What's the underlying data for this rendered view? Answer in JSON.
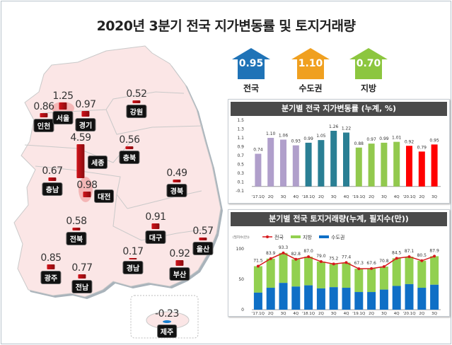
{
  "title": "2020년 3분기 전국 지가변동률 및 토지거래량",
  "summary": [
    {
      "label": "전국",
      "value": "0.95",
      "color": "#1f73b7"
    },
    {
      "label": "수도권",
      "value": "1.10",
      "color": "#f0a020"
    },
    {
      "label": "지방",
      "value": "0.70",
      "color": "#8cc63f"
    }
  ],
  "regions": [
    {
      "name": "인천",
      "value": "0.86"
    },
    {
      "name": "서울",
      "value": "1.25"
    },
    {
      "name": "경기",
      "value": "0.97"
    },
    {
      "name": "강원",
      "value": "0.52"
    },
    {
      "name": "세종",
      "value": "4.59"
    },
    {
      "name": "충북",
      "value": "0.56"
    },
    {
      "name": "충남",
      "value": "0.67"
    },
    {
      "name": "대전",
      "value": "0.98"
    },
    {
      "name": "경북",
      "value": "0.49"
    },
    {
      "name": "전북",
      "value": "0.58"
    },
    {
      "name": "대구",
      "value": "0.91"
    },
    {
      "name": "울산",
      "value": "0.57"
    },
    {
      "name": "경남",
      "value": "0.17"
    },
    {
      "name": "부산",
      "value": "0.92"
    },
    {
      "name": "광주",
      "value": "0.85"
    },
    {
      "name": "전남",
      "value": "0.77"
    },
    {
      "name": "제주",
      "value": "-0.23"
    }
  ],
  "chart_data": [
    {
      "type": "bar",
      "title": "분기별 전국 지가변동률 (누계, %)",
      "categories": [
        "'17.1Q",
        "2Q",
        "3Q",
        "4Q",
        "'18.1Q",
        "2Q",
        "3Q",
        "4Q",
        "'19.1Q",
        "2Q",
        "3Q",
        "4Q",
        "'20.1Q",
        "2Q",
        "3Q"
      ],
      "values": [
        0.74,
        1.1,
        1.06,
        0.93,
        0.99,
        1.05,
        1.26,
        1.22,
        0.88,
        0.97,
        0.99,
        1.01,
        0.92,
        0.79,
        0.95
      ],
      "labels": [
        "0.74",
        "1.10",
        "1.06",
        "0.93",
        "0.99",
        "1.05",
        "1.26",
        "1.22",
        "0.88",
        "0.97",
        "0.99",
        "1.01",
        "0.92",
        "0.79",
        "0.95"
      ],
      "colors": [
        "#b09fcb",
        "#2a7f94",
        "#92c94e",
        "#ff0000"
      ],
      "ylim": [
        -0.1,
        1.5
      ],
      "yticks": [
        "-0.1",
        "0.1",
        "0.3",
        "0.5",
        "0.7",
        "0.9",
        "1.1",
        "1.3",
        "1.5"
      ]
    },
    {
      "type": "bar",
      "title": "분기별 전국 토지거래량(누계, 필지수(만))",
      "unit": "(필지수(만))",
      "categories": [
        "'17.1Q",
        "2Q",
        "3Q",
        "4Q",
        "'18.1Q",
        "2Q",
        "3Q",
        "4Q",
        "'19.1Q",
        "2Q",
        "3Q",
        "4Q",
        "'20.1Q",
        "2Q",
        "3Q"
      ],
      "series": [
        {
          "name": "전국",
          "type": "line",
          "color": "#d7191c",
          "values": [
            71.5,
            83.9,
            93.3,
            82.8,
            87.0,
            79.0,
            75.2,
            77.4,
            67.3,
            67.6,
            70.8,
            84.5,
            87.1,
            80.5,
            87.9
          ],
          "labels": [
            "71.5",
            "83.9",
            "93.3",
            "82.8",
            "87.0",
            "79.0",
            "75.2",
            "77.4",
            "67.3",
            "67.6",
            "70.8",
            "84.5",
            "87.1",
            "80.5",
            "87.9"
          ]
        },
        {
          "name": "지방",
          "type": "bar-stack",
          "color": "#92d050"
        },
        {
          "name": "수도권",
          "type": "bar-stack",
          "color": "#0f6fc6",
          "values": [
            28,
            36,
            44,
            38,
            40,
            35,
            37,
            36,
            29,
            29,
            33,
            39,
            42,
            36,
            41
          ]
        }
      ],
      "ylim": [
        0,
        100
      ],
      "yticks": [
        "0",
        "50",
        "100"
      ]
    }
  ]
}
